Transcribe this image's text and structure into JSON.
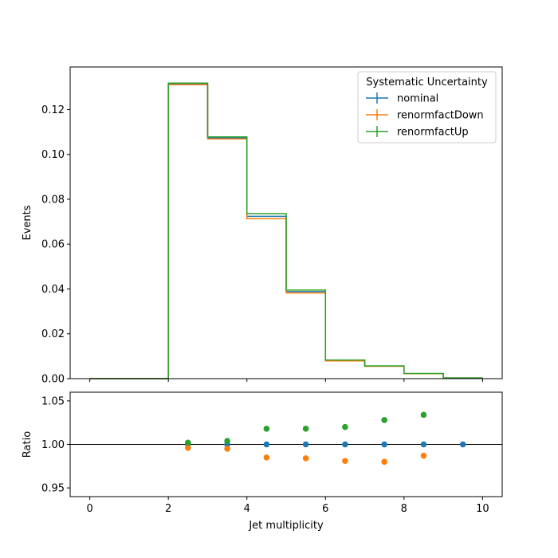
{
  "chart_data": [
    {
      "type": "step",
      "panel": "main",
      "ylabel": "Events",
      "xlim": [
        -0.5,
        10.5
      ],
      "ylim": [
        0,
        0.139
      ],
      "yticks": [
        0.0,
        0.02,
        0.04,
        0.06,
        0.08,
        0.1,
        0.12
      ],
      "ytick_labels": [
        "0.00",
        "0.02",
        "0.04",
        "0.06",
        "0.08",
        "0.10",
        "0.12"
      ],
      "bin_edges": [
        0,
        1,
        2,
        3,
        4,
        5,
        6,
        7,
        8,
        9,
        10
      ],
      "legend": {
        "title": "Systematic Uncertainty",
        "placement": "top-right"
      },
      "series": [
        {
          "name": "nominal",
          "color": "#1f77b4",
          "values": [
            0,
            0,
            0.1316,
            0.1074,
            0.0724,
            0.0388,
            0.0081,
            0.0056,
            0.0022,
            0.0003
          ]
        },
        {
          "name": "renormfactDown",
          "color": "#ff7f0e",
          "values": [
            0,
            0,
            0.1311,
            0.1069,
            0.0713,
            0.0382,
            0.0079,
            0.0055,
            0.0022,
            0.0003
          ]
        },
        {
          "name": "renormfactUp",
          "color": "#2ca02c",
          "values": [
            0,
            0,
            0.1318,
            0.1078,
            0.0736,
            0.0395,
            0.0083,
            0.0057,
            0.0023,
            0.0003
          ]
        }
      ]
    },
    {
      "type": "scatter",
      "panel": "ratio",
      "xlabel": "Jet multiplicity",
      "ylabel": "Ratio",
      "xlim": [
        -0.5,
        10.5
      ],
      "ylim": [
        0.94,
        1.06
      ],
      "xticks": [
        0,
        2,
        4,
        6,
        8,
        10
      ],
      "xtick_labels": [
        "0",
        "2",
        "4",
        "6",
        "8",
        "10"
      ],
      "yticks": [
        0.95,
        1.0,
        1.05
      ],
      "ytick_labels": [
        "0.95",
        "1.00",
        "1.05"
      ],
      "reference_line": 1.0,
      "series": [
        {
          "name": "nominal",
          "color": "#1f77b4",
          "x": [
            2.5,
            3.5,
            4.5,
            5.5,
            6.5,
            7.5,
            8.5,
            9.5
          ],
          "y": [
            1.0,
            1.0,
            1.0,
            1.0,
            1.0,
            1.0,
            1.0,
            1.0
          ]
        },
        {
          "name": "renormfactDown",
          "color": "#ff7f0e",
          "x": [
            2.5,
            3.5,
            4.5,
            5.5,
            6.5,
            7.5,
            8.5
          ],
          "y": [
            0.996,
            0.995,
            0.985,
            0.984,
            0.981,
            0.98,
            0.987
          ]
        },
        {
          "name": "renormfactUp",
          "color": "#2ca02c",
          "x": [
            2.5,
            3.5,
            4.5,
            5.5,
            6.5,
            7.5,
            8.5
          ],
          "y": [
            1.002,
            1.004,
            1.018,
            1.018,
            1.02,
            1.028,
            1.034
          ]
        }
      ]
    }
  ]
}
